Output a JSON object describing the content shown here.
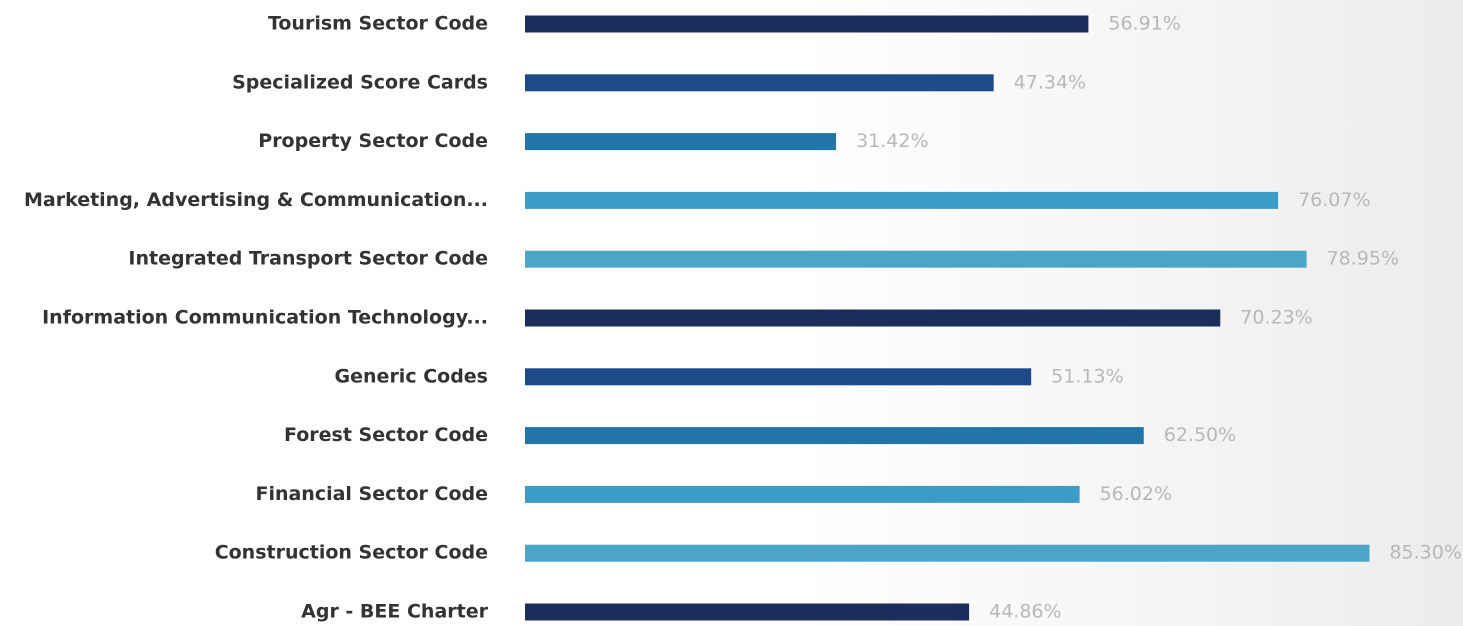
{
  "chart_data": {
    "type": "bar",
    "orientation": "horizontal",
    "categories": [
      "Tourism Sector Code",
      "Specialized Score Cards",
      "Property Sector Code",
      "Marketing, Advertising & Communication...",
      "Integrated Transport Sector Code",
      "Information Communication Technology...",
      "Generic Codes",
      "Forest Sector Code",
      "Financial Sector Code",
      "Construction Sector Code",
      "Agr - BEE Charter"
    ],
    "values": [
      56.91,
      47.34,
      31.42,
      76.07,
      78.95,
      70.23,
      51.13,
      62.5,
      56.02,
      85.3,
      44.86
    ],
    "value_labels": [
      "56.91%",
      "47.34%",
      "31.42%",
      "76.07%",
      "78.95%",
      "70.23%",
      "51.13%",
      "62.50%",
      "56.02%",
      "85.30%",
      "44.86%"
    ],
    "colors": [
      "#1b2d5b",
      "#1f4a8a",
      "#2275a8",
      "#3b9cc8",
      "#4ba5c5",
      "#1b2d5b",
      "#1f4a8a",
      "#2275a8",
      "#3b9cc8",
      "#4ba5c5",
      "#1b2d5b"
    ]
  }
}
